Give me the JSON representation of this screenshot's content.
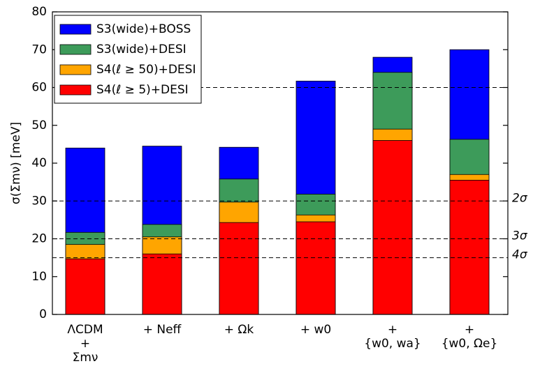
{
  "chart_data": {
    "type": "bar",
    "ylabel": "σ(Σmν) [meV]",
    "categories": [
      [
        "ΛCDM",
        "+",
        "Σmν"
      ],
      [
        "+ Neff"
      ],
      [
        "+ Ωk"
      ],
      [
        "+ w0"
      ],
      [
        "+",
        "{w0, wa}"
      ],
      [
        "+",
        "{w0, Ωe}"
      ]
    ],
    "series": [
      {
        "name": "S3(wide)+BOSS",
        "color": "#0000ff",
        "values": [
          44,
          44.5,
          44.2,
          61.7,
          68,
          70
        ]
      },
      {
        "name": "S3(wide)+DESI",
        "color": "#3d9b5a",
        "values": [
          21.7,
          23.8,
          35.8,
          31.8,
          64,
          46.3
        ]
      },
      {
        "name": "S4(ℓ ≥ 50)+DESI",
        "color": "#ffa500",
        "values": [
          18.5,
          20.5,
          29.7,
          26.3,
          49,
          37
        ]
      },
      {
        "name": "S4(ℓ ≥ 5)+DESI",
        "color": "#ff0000",
        "values": [
          14.7,
          16,
          24.3,
          24.5,
          46,
          35.5
        ]
      }
    ],
    "ylim": [
      0,
      80
    ],
    "yticks": [
      0,
      10,
      20,
      30,
      40,
      50,
      60,
      70,
      80
    ],
    "reference_lines": [
      {
        "value": 60
      },
      {
        "value": 30,
        "label": "2σ"
      },
      {
        "value": 20,
        "label": "3σ"
      },
      {
        "value": 15,
        "label": "4σ"
      }
    ],
    "legend": "upper left"
  }
}
